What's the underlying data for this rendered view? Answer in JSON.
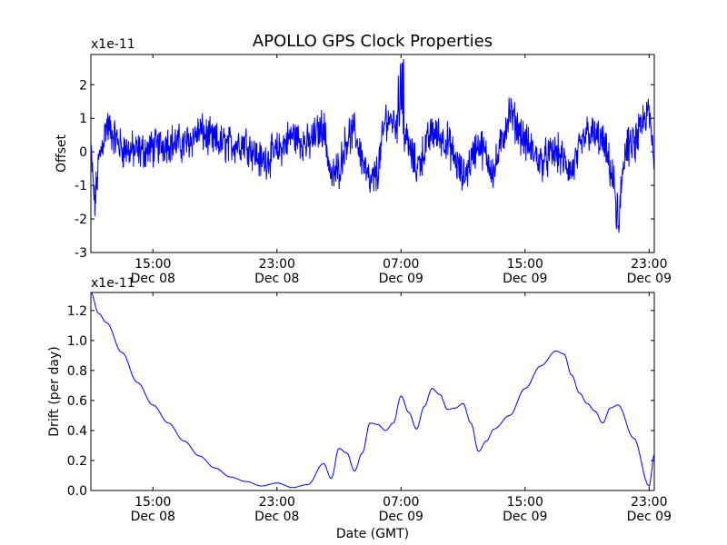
{
  "title": "APOLLO GPS Clock Properties",
  "colors": {
    "line": "#0000ff",
    "axes": "#000000",
    "background": "#ffffff"
  },
  "chart_data": [
    {
      "type": "line",
      "title": "APOLLO GPS Clock Properties",
      "ylabel": "Offset",
      "xlabel": "",
      "offset_text": "x1e-11",
      "ylim": [
        -3,
        2.9
      ],
      "yticks": [
        -3,
        -2,
        -1,
        0,
        1,
        2
      ],
      "ytick_labels": [
        "-3",
        "-2",
        "-1",
        "0",
        "1",
        "2"
      ],
      "xlim": [
        "2008-12-08T11:00",
        "2008-12-09T23:20"
      ],
      "xticks": [
        {
          "t": "2008-12-08T15:00",
          "label": "15:00",
          "date": "Dec 08"
        },
        {
          "t": "2008-12-08T23:00",
          "label": "23:00",
          "date": "Dec 08"
        },
        {
          "t": "2008-12-09T07:00",
          "label": "07:00",
          "date": "Dec 09"
        },
        {
          "t": "2008-12-09T15:00",
          "label": "15:00",
          "date": "Dec 09"
        },
        {
          "t": "2008-12-09T23:00",
          "label": "23:00",
          "date": "Dec 09"
        }
      ],
      "grid": false,
      "series": [
        {
          "color": "#0000ff",
          "noisy": true,
          "x": [
            "2008-12-08T11:00",
            "2008-12-08T11:15",
            "2008-12-08T11:30",
            "2008-12-08T12:00",
            "2008-12-08T13:00",
            "2008-12-08T14:00",
            "2008-12-08T15:00",
            "2008-12-08T16:00",
            "2008-12-08T17:00",
            "2008-12-08T18:00",
            "2008-12-08T19:00",
            "2008-12-08T20:00",
            "2008-12-08T21:00",
            "2008-12-08T22:00",
            "2008-12-08T23:00",
            "2008-12-09T00:00",
            "2008-12-09T01:00",
            "2008-12-09T02:00",
            "2008-12-09T02:30",
            "2008-12-09T03:00",
            "2008-12-09T03:30",
            "2008-12-09T04:00",
            "2008-12-09T05:00",
            "2008-12-09T05:30",
            "2008-12-09T06:00",
            "2008-12-09T07:00",
            "2008-12-09T08:00",
            "2008-12-09T09:00",
            "2008-12-09T10:00",
            "2008-12-09T11:00",
            "2008-12-09T12:00",
            "2008-12-09T13:00",
            "2008-12-09T14:00",
            "2008-12-09T15:00",
            "2008-12-09T16:00",
            "2008-12-09T17:00",
            "2008-12-09T18:00",
            "2008-12-09T19:00",
            "2008-12-09T20:00",
            "2008-12-09T20:30",
            "2008-12-09T21:00",
            "2008-12-09T21:30",
            "2008-12-09T22:00",
            "2008-12-09T23:00",
            "2008-12-09T23:20"
          ],
          "y": [
            0.0,
            -1.6,
            -0.3,
            0.8,
            0.1,
            0.0,
            0.1,
            0.3,
            0.2,
            0.6,
            0.3,
            0.2,
            0.3,
            -0.3,
            0.0,
            0.5,
            0.2,
            0.8,
            -0.8,
            -0.5,
            0.4,
            0.6,
            -1.0,
            -0.6,
            1.0,
            0.8,
            -0.5,
            0.6,
            0.3,
            -0.8,
            0.3,
            -0.6,
            1.2,
            0.3,
            -0.3,
            0.0,
            -0.6,
            0.6,
            0.3,
            -0.5,
            -1.6,
            0.1,
            0.2,
            1.2,
            -0.3
          ]
        }
      ],
      "annotations": [
        "spike to about 2.9 near 07:00 Dec 09",
        "dip to about -2.5 near 21:00 Dec 09"
      ]
    },
    {
      "type": "line",
      "title": "",
      "ylabel": "Drift (per day)",
      "xlabel": "Date (GMT)",
      "offset_text": "x1e-11",
      "ylim": [
        0,
        1.32
      ],
      "yticks": [
        0.0,
        0.2,
        0.4,
        0.6,
        0.8,
        1.0,
        1.2
      ],
      "ytick_labels": [
        "0.0",
        "0.2",
        "0.4",
        "0.6",
        "0.8",
        "1.0",
        "1.2"
      ],
      "xlim": [
        "2008-12-08T11:00",
        "2008-12-09T23:20"
      ],
      "xticks": [
        {
          "t": "2008-12-08T15:00",
          "label": "15:00",
          "date": "Dec 08"
        },
        {
          "t": "2008-12-08T23:00",
          "label": "23:00",
          "date": "Dec 08"
        },
        {
          "t": "2008-12-09T07:00",
          "label": "07:00",
          "date": "Dec 09"
        },
        {
          "t": "2008-12-09T15:00",
          "label": "15:00",
          "date": "Dec 09"
        },
        {
          "t": "2008-12-09T23:00",
          "label": "23:00",
          "date": "Dec 09"
        }
      ],
      "grid": false,
      "series": [
        {
          "color": "#0000ff",
          "noisy": false,
          "x": [
            "2008-12-08T11:00",
            "2008-12-08T11:30",
            "2008-12-08T12:00",
            "2008-12-08T13:00",
            "2008-12-08T14:00",
            "2008-12-08T15:00",
            "2008-12-08T16:00",
            "2008-12-08T17:00",
            "2008-12-08T18:00",
            "2008-12-08T19:00",
            "2008-12-08T20:00",
            "2008-12-08T21:00",
            "2008-12-08T22:00",
            "2008-12-08T23:00",
            "2008-12-09T00:00",
            "2008-12-09T01:00",
            "2008-12-09T02:00",
            "2008-12-09T02:30",
            "2008-12-09T03:00",
            "2008-12-09T03:30",
            "2008-12-09T04:00",
            "2008-12-09T04:30",
            "2008-12-09T05:00",
            "2008-12-09T05:30",
            "2008-12-09T06:00",
            "2008-12-09T06:30",
            "2008-12-09T07:00",
            "2008-12-09T07:30",
            "2008-12-09T08:00",
            "2008-12-09T08:30",
            "2008-12-09T09:00",
            "2008-12-09T09:30",
            "2008-12-09T10:00",
            "2008-12-09T10:30",
            "2008-12-09T11:00",
            "2008-12-09T11:30",
            "2008-12-09T12:00",
            "2008-12-09T12:30",
            "2008-12-09T13:00",
            "2008-12-09T14:00",
            "2008-12-09T15:00",
            "2008-12-09T16:00",
            "2008-12-09T17:00",
            "2008-12-09T17:30",
            "2008-12-09T18:00",
            "2008-12-09T18:30",
            "2008-12-09T19:00",
            "2008-12-09T19:30",
            "2008-12-09T20:00",
            "2008-12-09T20:30",
            "2008-12-09T21:00",
            "2008-12-09T22:00",
            "2008-12-09T23:00",
            "2008-12-09T23:20"
          ],
          "y": [
            1.32,
            1.18,
            1.12,
            0.92,
            0.72,
            0.57,
            0.45,
            0.33,
            0.23,
            0.15,
            0.09,
            0.06,
            0.03,
            0.05,
            0.02,
            0.04,
            0.18,
            0.08,
            0.28,
            0.25,
            0.13,
            0.25,
            0.45,
            0.44,
            0.4,
            0.45,
            0.63,
            0.52,
            0.41,
            0.56,
            0.68,
            0.64,
            0.54,
            0.55,
            0.58,
            0.45,
            0.26,
            0.33,
            0.41,
            0.5,
            0.68,
            0.83,
            0.93,
            0.91,
            0.77,
            0.65,
            0.58,
            0.53,
            0.45,
            0.55,
            0.57,
            0.35,
            0.03,
            0.24
          ]
        }
      ]
    }
  ]
}
